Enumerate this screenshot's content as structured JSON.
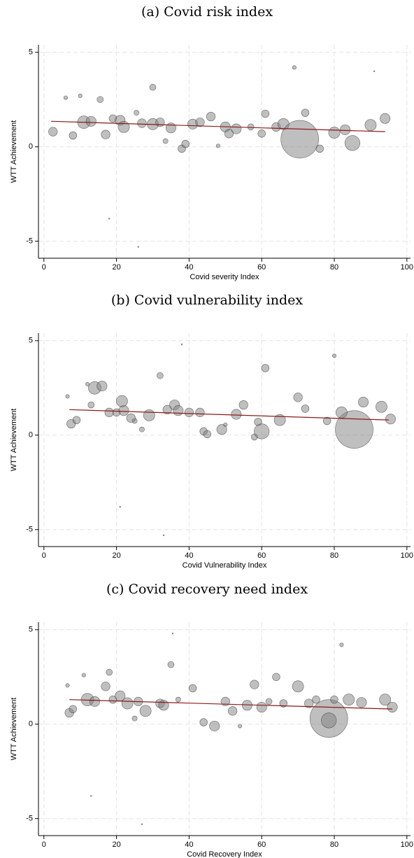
{
  "chart_data": [
    {
      "type": "scatter",
      "title": "(a) Covid risk index",
      "xlabel": "Covid severity Index",
      "ylabel": "WTT Achievement",
      "xlim": [
        -1.5,
        101
      ],
      "ylim": [
        -5.9,
        5.4
      ],
      "xticks": [
        0,
        20,
        40,
        60,
        80,
        100
      ],
      "yticks": [
        -5,
        0,
        5
      ],
      "grid": true,
      "points": {
        "color": "#808080",
        "x": [
          2.5,
          6,
          8,
          10,
          11,
          13,
          15.5,
          17,
          19,
          21,
          22,
          25.5,
          27,
          30,
          30,
          32,
          33.5,
          35,
          38,
          39,
          41,
          43,
          46,
          48,
          50,
          51,
          53,
          57,
          60,
          61,
          64,
          66,
          69,
          70.5,
          72,
          76,
          80,
          83,
          85,
          90,
          94,
          18,
          26,
          91
        ],
        "values": [
          0.8,
          2.6,
          0.6,
          2.7,
          1.3,
          1.35,
          2.5,
          0.65,
          1.5,
          1.4,
          1.05,
          1.8,
          1.25,
          3.15,
          1.2,
          1.3,
          0.3,
          1.0,
          -0.1,
          0.15,
          1.2,
          1.3,
          1.6,
          0.05,
          1.05,
          0.7,
          0.95,
          1.05,
          0.7,
          1.75,
          1.05,
          1.2,
          4.2,
          0.4,
          1.8,
          -0.1,
          0.75,
          0.9,
          0.2,
          1.15,
          1.5,
          -3.8,
          -5.3,
          4.0
        ],
        "sizes": [
          49,
          9,
          36,
          9,
          100,
          64,
          25,
          49,
          36,
          64,
          81,
          16,
          49,
          25,
          81,
          49,
          16,
          64,
          36,
          36,
          64,
          49,
          49,
          9,
          64,
          49,
          64,
          25,
          36,
          36,
          49,
          81,
          9,
          900,
          36,
          36,
          81,
          64,
          144,
          81,
          64,
          1,
          1,
          1
        ]
      },
      "fit": {
        "color": "#8b1a1a",
        "x": [
          2,
          94
        ],
        "values": [
          1.35,
          0.8
        ]
      }
    },
    {
      "type": "scatter",
      "title": "(b) Covid vulnerability index",
      "xlabel": "Covid Vulnerability Index",
      "ylabel": "WTT Achievement",
      "xlim": [
        -1.5,
        101
      ],
      "ylim": [
        -5.9,
        5.4
      ],
      "xticks": [
        0,
        20,
        40,
        60,
        80,
        100
      ],
      "yticks": [
        -5,
        0,
        5
      ],
      "grid": true,
      "points": {
        "color": "#808080",
        "x": [
          7.5,
          6.5,
          9,
          12,
          14,
          16,
          13,
          18,
          20,
          22,
          21.5,
          25,
          24,
          32,
          29,
          34,
          27,
          36,
          44,
          45,
          37,
          40,
          43,
          50,
          49,
          55,
          53,
          58,
          59,
          61,
          70,
          65,
          80,
          85.5,
          72,
          78,
          82,
          88,
          60,
          93,
          95.5,
          21,
          33,
          38
        ],
        "values": [
          0.6,
          2.05,
          0.8,
          2.7,
          2.5,
          2.6,
          1.6,
          1.2,
          1.2,
          1.3,
          1.8,
          0.75,
          0.9,
          3.15,
          1.05,
          1.35,
          0.3,
          1.6,
          0.2,
          0.05,
          1.3,
          1.2,
          1.2,
          0.55,
          0.3,
          1.6,
          1.1,
          -0.1,
          0.7,
          3.55,
          2.0,
          0.8,
          4.2,
          0.3,
          1.4,
          0.75,
          1.2,
          1.75,
          0.2,
          1.5,
          0.85,
          -3.8,
          -5.3,
          4.8
        ],
        "sizes": [
          49,
          9,
          36,
          9,
          100,
          64,
          25,
          49,
          36,
          64,
          81,
          16,
          49,
          25,
          81,
          49,
          16,
          64,
          36,
          36,
          64,
          49,
          49,
          9,
          64,
          49,
          64,
          25,
          36,
          36,
          49,
          81,
          9,
          900,
          36,
          36,
          81,
          64,
          144,
          81,
          64,
          1,
          1,
          1
        ]
      },
      "fit": {
        "color": "#8b1a1a",
        "x": [
          7,
          95
        ],
        "values": [
          1.35,
          0.8
        ]
      }
    },
    {
      "type": "scatter",
      "title": "(c) Covid recovery need index",
      "xlabel": "Covid Recovery Index",
      "ylabel": "WTT Achievement",
      "xlim": [
        -1.5,
        101
      ],
      "ylim": [
        -5.9,
        5.4
      ],
      "xticks": [
        0,
        20,
        40,
        60,
        80,
        100
      ],
      "yticks": [
        -5,
        0,
        5
      ],
      "grid": true,
      "points": {
        "color": "#808080",
        "x": [
          7,
          6.5,
          8,
          11,
          12,
          14,
          18,
          17,
          19,
          21,
          23,
          25,
          26,
          35,
          28,
          32,
          37,
          33,
          41,
          44,
          47,
          50,
          52,
          54,
          56,
          58,
          60,
          62,
          64,
          66,
          73,
          70,
          82,
          78.5,
          75,
          80,
          84,
          87.5,
          78.5,
          94,
          96,
          13,
          27,
          35.5
        ],
        "values": [
          0.6,
          2.05,
          0.8,
          2.6,
          1.3,
          1.2,
          2.75,
          2.0,
          1.3,
          1.5,
          1.1,
          0.3,
          1.2,
          3.15,
          0.7,
          1.1,
          1.3,
          1.0,
          1.9,
          0.1,
          -0.1,
          1.2,
          0.7,
          -0.1,
          1.0,
          2.1,
          0.9,
          1.2,
          2.5,
          1.1,
          1.1,
          2.0,
          4.2,
          0.3,
          1.3,
          1.3,
          1.3,
          1.15,
          0.2,
          1.3,
          0.9,
          -3.8,
          -5.3,
          4.8
        ],
        "sizes": [
          49,
          9,
          36,
          9,
          100,
          64,
          25,
          49,
          36,
          64,
          81,
          16,
          49,
          25,
          81,
          49,
          16,
          64,
          36,
          36,
          64,
          49,
          49,
          9,
          64,
          49,
          64,
          25,
          36,
          36,
          49,
          81,
          9,
          900,
          36,
          36,
          81,
          64,
          144,
          81,
          64,
          1,
          1,
          1
        ]
      },
      "fit": {
        "color": "#8b1a1a",
        "x": [
          7,
          96
        ],
        "values": [
          1.3,
          0.8
        ]
      }
    }
  ]
}
